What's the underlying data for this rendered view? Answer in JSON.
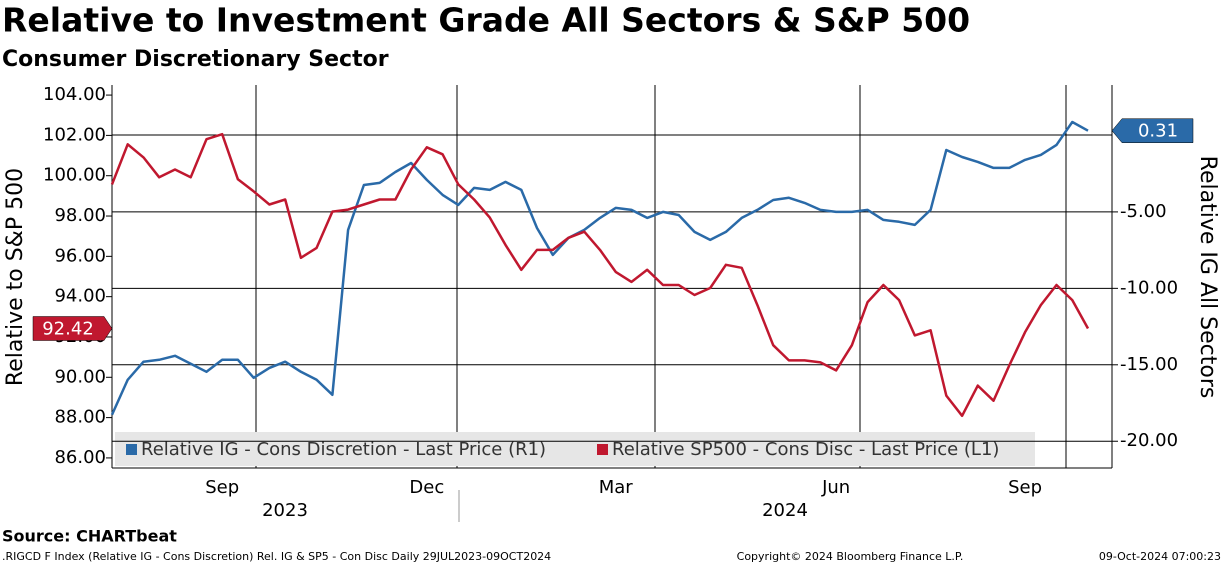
{
  "chart_data": {
    "type": "line",
    "title": "Relative to Investment Grade All Sectors & S&P 500",
    "subtitle": "Consumer Discretionary Sector",
    "ylabel": "Relative to S&P 500",
    "y2label": "Relative IG All Sectors",
    "categories": [
      null,
      null,
      null,
      null,
      null,
      null,
      null,
      "Sep",
      null,
      null,
      null,
      null,
      null,
      null,
      null,
      null,
      null,
      null,
      null,
      null,
      "Dec",
      null,
      null,
      null,
      null,
      null,
      null,
      null,
      null,
      null,
      null,
      null,
      "Mar",
      null,
      null,
      null,
      null,
      null,
      null,
      null,
      null,
      null,
      null,
      null,
      null,
      null,
      "Jun",
      null,
      null,
      null,
      null,
      null,
      null,
      null,
      null,
      null,
      null,
      null,
      "Sep",
      null,
      null,
      null,
      null
    ],
    "years": [
      "2023",
      "2024"
    ],
    "series": [
      {
        "name": "Relative IG - Cons Discretion - Last Price (R1)",
        "color": "#2a6aa8",
        "axis": "y2",
        "values": [
          -18.27,
          -15.98,
          -14.8,
          -14.67,
          -14.41,
          -14.93,
          -15.46,
          -14.67,
          -14.67,
          -15.85,
          -15.2,
          -14.8,
          -15.46,
          -15.98,
          -16.96,
          -6.18,
          -3.24,
          -3.1,
          -2.39,
          -1.8,
          -2.91,
          -3.89,
          -4.54,
          -3.43,
          -3.56,
          -3.04,
          -3.56,
          -6.05,
          -7.81,
          -6.7,
          -6.18,
          -5.39,
          -4.74,
          -4.87,
          -5.39,
          -5.0,
          -5.2,
          -6.31,
          -6.83,
          -6.31,
          -5.39,
          -4.87,
          -4.22,
          -4.08,
          -4.41,
          -4.87,
          -5.0,
          -5.0,
          -4.87,
          -5.52,
          -5.65,
          -5.85,
          -4.87,
          -0.95,
          -1.41,
          -1.73,
          -2.12,
          -2.12,
          -1.6,
          -1.27,
          -0.62,
          0.88,
          0.31
        ]
      },
      {
        "name": "Relative SP500 - Cons Disc - Last Price (L1)",
        "color": "#c0182f",
        "axis": "y",
        "values": [
          99.57,
          101.56,
          100.91,
          99.92,
          100.31,
          99.92,
          101.81,
          102.06,
          99.82,
          99.22,
          98.57,
          98.82,
          95.93,
          96.42,
          98.22,
          98.32,
          98.57,
          98.82,
          98.82,
          100.31,
          101.41,
          101.06,
          99.57,
          98.82,
          97.92,
          96.57,
          95.33,
          96.32,
          96.32,
          96.92,
          97.22,
          96.32,
          95.23,
          94.73,
          95.33,
          94.58,
          94.58,
          94.08,
          94.43,
          95.58,
          95.43,
          93.58,
          91.59,
          90.84,
          90.84,
          90.74,
          90.34,
          91.59,
          93.73,
          94.58,
          93.83,
          92.08,
          92.33,
          89.09,
          88.09,
          89.59,
          88.84,
          90.59,
          92.23,
          93.58,
          94.58,
          93.83,
          92.42
        ]
      }
    ],
    "ylim": [
      85.5,
      104.5
    ],
    "yticks": [
      {
        "value": 86,
        "label": "86.00"
      },
      {
        "value": 88,
        "label": "88.00"
      },
      {
        "value": 90,
        "label": "90.00"
      },
      {
        "value": 92,
        "label": "92.00"
      },
      {
        "value": 94,
        "label": "94.00"
      },
      {
        "value": 96,
        "label": "96.00"
      },
      {
        "value": 98,
        "label": "98.00"
      },
      {
        "value": 100,
        "label": "100.00"
      },
      {
        "value": 102,
        "label": "102.00"
      },
      {
        "value": 104,
        "label": "104.00"
      }
    ],
    "y2lim": [
      -21.75,
      3.3
    ],
    "y2ticks": [
      {
        "value": -5,
        "label": "-5.00"
      },
      {
        "value": -10,
        "label": "-10.00"
      },
      {
        "value": -15,
        "label": "-15.00"
      },
      {
        "value": -20,
        "label": "-20.00"
      }
    ],
    "grid": true,
    "source": "Source: CHARTbeat",
    "footer": {
      "left": ".RIGCD F Index (Relative IG - Cons Discretion) Rel. IG & SP5 - Con Disc  Daily 29JUL2023-09OCT2024",
      "center": "Copyright© 2024 Bloomberg Finance L.P.",
      "right": "09-Oct-2024 07:00:23"
    }
  }
}
